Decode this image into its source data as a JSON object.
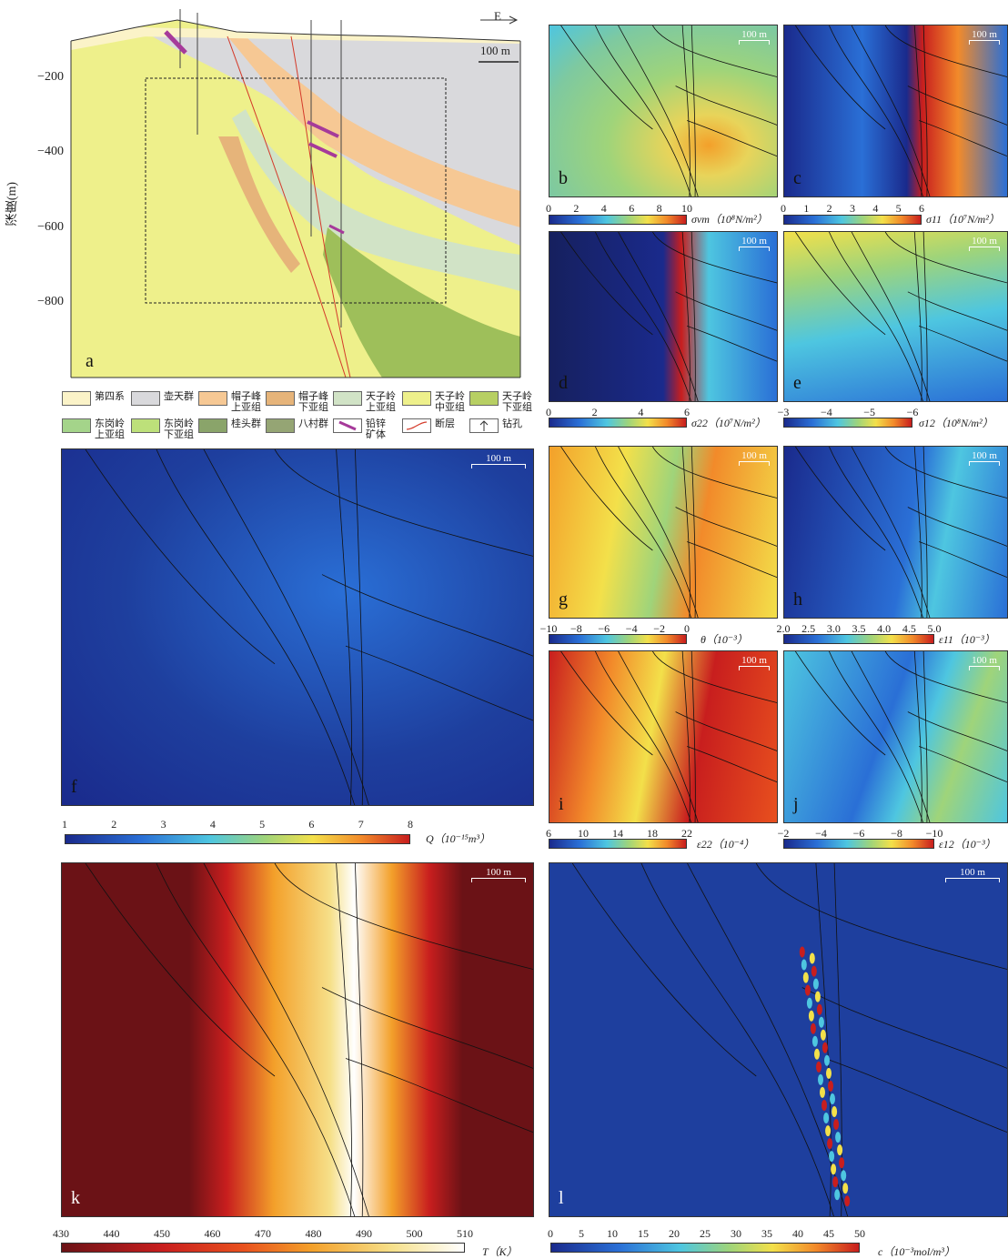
{
  "panel_a": {
    "label": "a",
    "ylabel": "深度(m)",
    "yticks": [
      "−200",
      "−400",
      "−600",
      "−800"
    ],
    "scale": "100 m",
    "compass": "E",
    "legend": [
      {
        "text": "第四系",
        "color": "#fbf3c8"
      },
      {
        "text": "壶天群",
        "color": "#d9d9dc"
      },
      {
        "text": "帽子峰\n上亚组",
        "color": "#f6c894"
      },
      {
        "text": "帽子峰\n下亚组",
        "color": "#e6b47a"
      },
      {
        "text": "天子岭\n上亚组",
        "color": "#d1e3c6"
      },
      {
        "text": "天子岭\n中亚组",
        "color": "#eef08b"
      },
      {
        "text": "天子岭\n下亚组",
        "color": "#b7cf63"
      },
      {
        "text": "东岗岭\n上亚组",
        "color": "#a4d48a"
      },
      {
        "text": "东岗岭\n下亚组",
        "color": "#bde07a"
      },
      {
        "text": "桂头群",
        "color": "#8aa46a"
      },
      {
        "text": "八村群",
        "color": "#95a574"
      },
      {
        "text": "铅锌\n矿体",
        "color": "#ffffff",
        "sym": "ore"
      },
      {
        "text": "断层",
        "color": "#ffffff",
        "sym": "fault"
      },
      {
        "text": "钻孔",
        "color": "#ffffff",
        "sym": "drill"
      }
    ]
  },
  "panels": [
    {
      "id": "b",
      "label": "b",
      "scale": "100 m",
      "ticks": [
        "0",
        "2",
        "4",
        "6",
        "8",
        "10"
      ],
      "unit": "σvm（10⁸N/m²）"
    },
    {
      "id": "c",
      "label": "c",
      "scale": "100 m",
      "ticks": [
        "0",
        "1",
        "2",
        "3",
        "4",
        "5",
        "6"
      ],
      "unit": "σ11（10⁷N/m²）"
    },
    {
      "id": "d",
      "label": "d",
      "scale": "100 m",
      "ticks": [
        "0",
        "2",
        "4",
        "6"
      ],
      "unit": "σ22（10⁷N/m²）"
    },
    {
      "id": "e",
      "label": "e",
      "scale": "100 m",
      "ticks": [
        "−3",
        "−4",
        "−5",
        "−6"
      ],
      "unit": "σ12（10⁸N/m²）"
    },
    {
      "id": "f",
      "label": "f",
      "scale": "100 m",
      "ticks": [
        "1",
        "2",
        "3",
        "4",
        "5",
        "6",
        "7",
        "8"
      ],
      "unit": "Q（10⁻¹⁵m³）"
    },
    {
      "id": "g",
      "label": "g",
      "scale": "100 m",
      "ticks": [
        "−10",
        "−8",
        "−6",
        "−4",
        "−2",
        "0"
      ],
      "unit": "θ（10⁻³）"
    },
    {
      "id": "h",
      "label": "h",
      "scale": "100 m",
      "ticks": [
        "2.0",
        "2.5",
        "3.0",
        "3.5",
        "4.0",
        "4.5",
        "5.0"
      ],
      "unit": "ε11（10⁻³）"
    },
    {
      "id": "i",
      "label": "i",
      "scale": "100 m",
      "ticks": [
        "6",
        "10",
        "14",
        "18",
        "22"
      ],
      "unit": "ε22（10⁻⁴）"
    },
    {
      "id": "j",
      "label": "j",
      "scale": "100 m",
      "ticks": [
        "−2",
        "−4",
        "−6",
        "−8",
        "−10"
      ],
      "unit": "ε12（10⁻³）"
    },
    {
      "id": "k",
      "label": "k",
      "scale": "100 m",
      "ticks": [
        "430",
        "440",
        "450",
        "460",
        "470",
        "480",
        "490",
        "500",
        "510"
      ],
      "unit": "T（K）"
    },
    {
      "id": "l",
      "label": "l",
      "scale": "100 m",
      "ticks": [
        "0",
        "5",
        "10",
        "15",
        "20",
        "25",
        "30",
        "35",
        "40",
        "45",
        "50"
      ],
      "unit": "c（10⁻³mol/m³）"
    }
  ],
  "colors": {
    "jet_dark": "#1a2a8c",
    "jet_blue": "#2a6fd6",
    "jet_cyan": "#4ec6e0",
    "jet_green": "#9fd47a",
    "jet_yellow": "#f3e04a",
    "jet_orange": "#f28a2a",
    "jet_red": "#c81e1e",
    "heat_dark": "#6b1216"
  }
}
